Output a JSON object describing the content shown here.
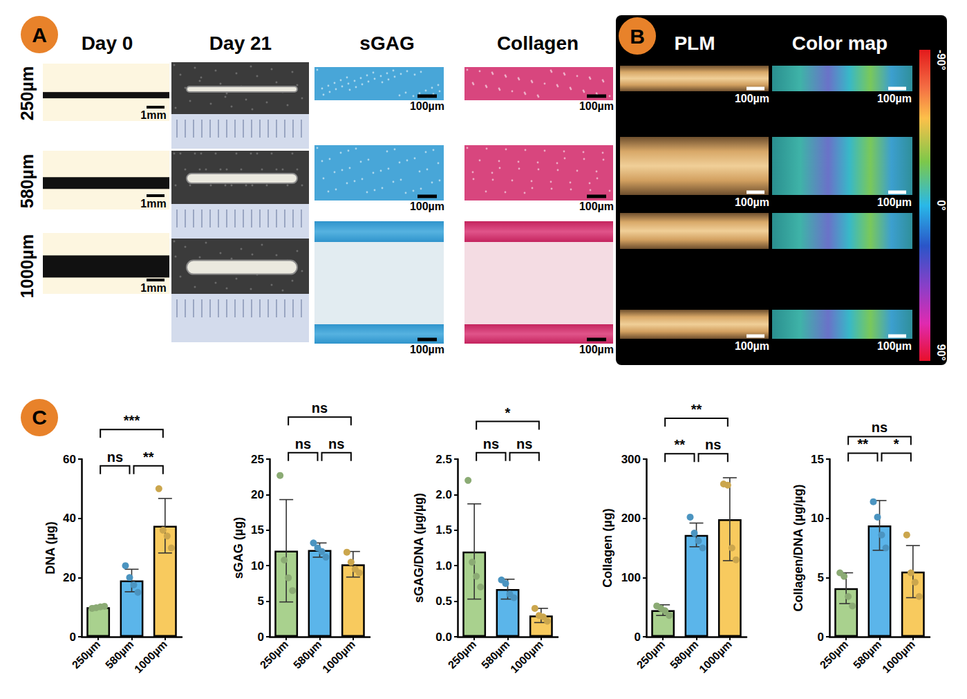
{
  "figure": {
    "A": {
      "letter": "A",
      "columns": [
        "Day 0",
        "Day 21",
        "sGAG",
        "Collagen"
      ],
      "rows": [
        "250µm",
        "580µm",
        "1000µm"
      ],
      "scale_bars": {
        "Day 0": "1mm",
        "sGAG": "100µm",
        "Collagen": "100µm"
      }
    },
    "B": {
      "letter": "B",
      "columns": [
        "PLM",
        "Color map"
      ],
      "scale_bar": "100µm",
      "colorbar": {
        "range": [
          -90,
          90
        ],
        "ticks": [
          {
            "value": -90,
            "label": "-90°"
          },
          {
            "value": 0,
            "label": "0°"
          },
          {
            "value": 90,
            "label": "90°"
          }
        ]
      }
    },
    "C": {
      "letter": "C"
    }
  },
  "chart_data": [
    {
      "type": "bar",
      "ylabel": "DNA (µg)",
      "categories": [
        "250µm",
        "580µm",
        "1000µm"
      ],
      "colors": [
        "#a9d18e",
        "#5bb5ea",
        "#f8ca5e"
      ],
      "values": [
        10,
        19,
        37.5
      ],
      "errors": [
        0.4,
        3.8,
        9.2
      ],
      "points": [
        [
          9.6,
          9.8,
          10.1,
          10.3
        ],
        [
          24,
          20,
          17.5,
          15
        ],
        [
          50,
          36,
          34,
          30
        ]
      ],
      "ylim": [
        0,
        60
      ],
      "yticks": [
        0,
        20,
        40,
        60
      ],
      "brackets": [
        {
          "from": "250µm",
          "to": "1000µm",
          "y": 70,
          "label": "***"
        },
        {
          "from": "250µm",
          "to": "580µm",
          "y": 57.7,
          "label": "ns"
        },
        {
          "from": "580µm",
          "to": "1000µm",
          "y": 57.7,
          "label": "**"
        }
      ]
    },
    {
      "type": "bar",
      "ylabel": "sGAG (µg)",
      "categories": [
        "250µm",
        "580µm",
        "1000µm"
      ],
      "colors": [
        "#a9d18e",
        "#5bb5ea",
        "#f8ca5e"
      ],
      "values": [
        12.1,
        12.2,
        10.2
      ],
      "errors": [
        7.2,
        1,
        1.8
      ],
      "points": [
        [
          22.7,
          10.8,
          8.3,
          6.5
        ],
        [
          13.2,
          12.5,
          12,
          11.2
        ],
        [
          11.9,
          10.5,
          9.5,
          9
        ]
      ],
      "ylim": [
        0,
        25
      ],
      "yticks": [
        0,
        5,
        10,
        15,
        20,
        25
      ],
      "brackets": [
        {
          "from": "250µm",
          "to": "1000µm",
          "y": 30.9,
          "label": "ns"
        },
        {
          "from": "250µm",
          "to": "580µm",
          "y": 25.9,
          "label": "ns"
        },
        {
          "from": "580µm",
          "to": "1000µm",
          "y": 25.9,
          "label": "ns"
        }
      ]
    },
    {
      "type": "bar",
      "ylabel": "sGAG/DNA (µg/µg)",
      "categories": [
        "250µm",
        "580µm",
        "1000µm"
      ],
      "colors": [
        "#a9d18e",
        "#5bb5ea",
        "#f8ca5e"
      ],
      "values": [
        1.2,
        0.67,
        0.3
      ],
      "errors": [
        0.67,
        0.14,
        0.1
      ],
      "points": [
        [
          2.2,
          1.05,
          0.85,
          0.7
        ],
        [
          0.8,
          0.75,
          0.6,
          0.55
        ],
        [
          0.4,
          0.3,
          0.28,
          0.22
        ]
      ],
      "ylim": [
        0,
        2.5
      ],
      "yticks": [
        {
          "value": 0,
          "label": "0.0"
        },
        0.5,
        {
          "value": 1,
          "label": "1.0"
        },
        1.5,
        {
          "value": 2,
          "label": "2.0"
        },
        2.5
      ],
      "brackets": [
        {
          "from": "250µm",
          "to": "1000µm",
          "y": 3.03,
          "label": "*"
        },
        {
          "from": "250µm",
          "to": "580µm",
          "y": 2.59,
          "label": "ns"
        },
        {
          "from": "580µm",
          "to": "1000µm",
          "y": 2.59,
          "label": "ns"
        }
      ]
    },
    {
      "type": "bar",
      "ylabel": "Collagen (µg)",
      "categories": [
        "250µm",
        "580µm",
        "1000µm"
      ],
      "colors": [
        "#a9d18e",
        "#5bb5ea",
        "#f8ca5e"
      ],
      "values": [
        45,
        172,
        198.5
      ],
      "errors": [
        9,
        20,
        70
      ],
      "points": [
        [
          52,
          48,
          44,
          36
        ],
        [
          202,
          175,
          162,
          150
        ],
        [
          258,
          256,
          150,
          130
        ]
      ],
      "ylim": [
        0,
        300
      ],
      "yticks": [
        0,
        100,
        200,
        300
      ],
      "brackets": [
        {
          "from": "250µm",
          "to": "1000µm",
          "y": 369,
          "label": "**"
        },
        {
          "from": "250µm",
          "to": "580µm",
          "y": 309,
          "label": "**"
        },
        {
          "from": "580µm",
          "to": "1000µm",
          "y": 309,
          "label": "ns"
        }
      ]
    },
    {
      "type": "bar",
      "ylabel": "Collagen/DNA (µg/µg)",
      "categories": [
        "250µm",
        "580µm",
        "1000µm"
      ],
      "colors": [
        "#a9d18e",
        "#5bb5ea",
        "#f8ca5e"
      ],
      "values": [
        4.1,
        9.4,
        5.5
      ],
      "errors": [
        1.3,
        2.1,
        2.2
      ],
      "points": [
        [
          5.4,
          5.1,
          3.4,
          2.6
        ],
        [
          11.4,
          10.1,
          8.6,
          7.5
        ],
        [
          8.6,
          5.4,
          4.6,
          3.4
        ]
      ],
      "ylim": [
        0,
        15
      ],
      "yticks": [
        0,
        5,
        10,
        15
      ],
      "brackets": [
        {
          "from": "250µm",
          "to": "1000µm",
          "y": 16.9,
          "label": "ns"
        },
        {
          "from": "250µm",
          "to": "580µm",
          "y": 15.5,
          "label": "**"
        },
        {
          "from": "580µm",
          "to": "1000µm",
          "y": 15.5,
          "label": "*"
        }
      ]
    }
  ]
}
